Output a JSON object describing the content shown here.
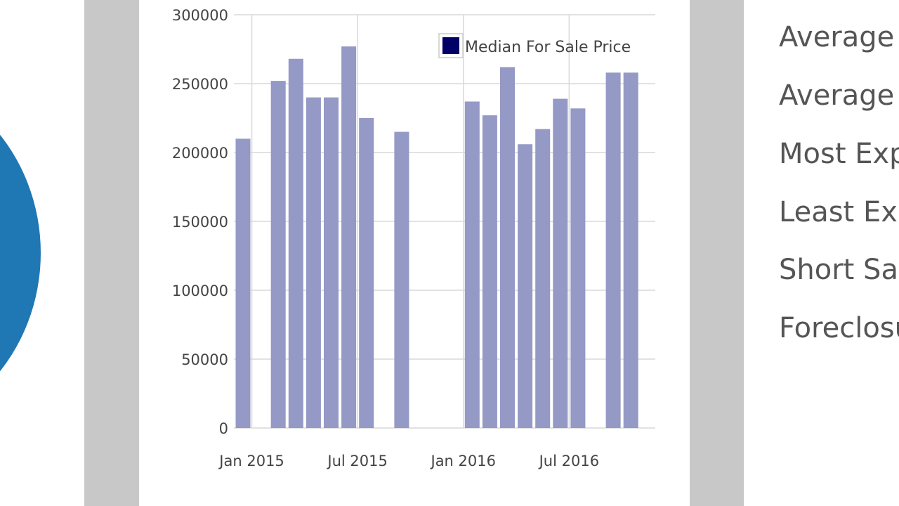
{
  "colors": {
    "pie_fill": "#1f77b4",
    "bar_fill": "#9499c5",
    "legend_swatch": "#000066",
    "gutter": "#c8c8c8"
  },
  "chart_data": {
    "type": "bar",
    "title": "",
    "xlabel": "",
    "ylabel": "",
    "ylim": [
      0,
      300000
    ],
    "yticks": [
      0,
      50000,
      100000,
      150000,
      200000,
      250000,
      300000
    ],
    "xticks": [
      "Jan 2015",
      "Jul 2015",
      "Jan 2016",
      "Jul 2016"
    ],
    "grid": true,
    "legend_position": "top-right",
    "series": [
      {
        "name": "Median For Sale Price",
        "color": "#9499c5",
        "points": [
          {
            "x": "Jan 2015",
            "y": 210000
          },
          {
            "x": "Feb 2015",
            "y": null
          },
          {
            "x": "Mar 2015",
            "y": 252000
          },
          {
            "x": "Apr 2015",
            "y": 268000
          },
          {
            "x": "May 2015",
            "y": 240000
          },
          {
            "x": "Jun 2015",
            "y": 240000
          },
          {
            "x": "Jul 2015",
            "y": 277000
          },
          {
            "x": "Aug 2015",
            "y": 225000
          },
          {
            "x": "Sep 2015",
            "y": null
          },
          {
            "x": "Oct 2015",
            "y": 215000
          },
          {
            "x": "Nov 2015",
            "y": null
          },
          {
            "x": "Dec 2015",
            "y": null
          },
          {
            "x": "Jan 2016",
            "y": null
          },
          {
            "x": "Feb 2016",
            "y": 237000
          },
          {
            "x": "Mar 2016",
            "y": 227000
          },
          {
            "x": "Apr 2016",
            "y": 262000
          },
          {
            "x": "May 2016",
            "y": 206000
          },
          {
            "x": "Jun 2016",
            "y": 217000
          },
          {
            "x": "Jul 2016",
            "y": 239000
          },
          {
            "x": "Aug 2016",
            "y": 232000
          },
          {
            "x": "Sep 2016",
            "y": null
          },
          {
            "x": "Oct 2016",
            "y": 258000
          },
          {
            "x": "Nov 2016",
            "y": 258000
          }
        ]
      }
    ]
  },
  "stats": {
    "labels": [
      "Average Price",
      "Average Price per Sq Ft",
      "Most Expensive",
      "Least Expensive",
      "Short Sales",
      "Foreclosures"
    ]
  }
}
